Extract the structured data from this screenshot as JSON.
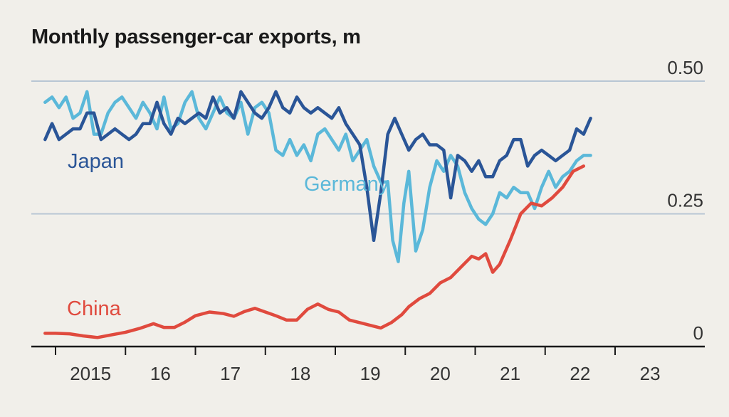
{
  "chart_data": {
    "type": "line",
    "title": "Monthly passenger-car exports, m",
    "xlabel": "",
    "ylabel": "",
    "ylim": [
      0,
      0.5
    ],
    "yticks": [
      {
        "value": 0,
        "label": "0"
      },
      {
        "value": 0.25,
        "label": "0.25"
      },
      {
        "value": 0.5,
        "label": "0.50"
      }
    ],
    "xlim": [
      2014.6,
      2024.12
    ],
    "xticks": [
      {
        "value": 2015,
        "label": "2015"
      },
      {
        "value": 2016,
        "label": "16"
      },
      {
        "value": 2017,
        "label": "17"
      },
      {
        "value": 2018,
        "label": "18"
      },
      {
        "value": 2019,
        "label": "19"
      },
      {
        "value": 2020,
        "label": "20"
      },
      {
        "value": 2021,
        "label": "21"
      },
      {
        "value": 2022,
        "label": "22"
      },
      {
        "value": 2023,
        "label": "23"
      }
    ],
    "grid": "horizontal at 0.25 and 0.50",
    "series": [
      {
        "name": "Germany",
        "color": "#5bb8d9",
        "points": [
          [
            2014.85,
            0.46
          ],
          [
            2014.95,
            0.47
          ],
          [
            2015.05,
            0.45
          ],
          [
            2015.15,
            0.47
          ],
          [
            2015.25,
            0.43
          ],
          [
            2015.35,
            0.44
          ],
          [
            2015.45,
            0.48
          ],
          [
            2015.55,
            0.4
          ],
          [
            2015.65,
            0.4
          ],
          [
            2015.75,
            0.44
          ],
          [
            2015.85,
            0.46
          ],
          [
            2015.95,
            0.47
          ],
          [
            2016.05,
            0.45
          ],
          [
            2016.15,
            0.43
          ],
          [
            2016.25,
            0.46
          ],
          [
            2016.35,
            0.44
          ],
          [
            2016.45,
            0.41
          ],
          [
            2016.55,
            0.47
          ],
          [
            2016.65,
            0.41
          ],
          [
            2016.75,
            0.42
          ],
          [
            2016.85,
            0.46
          ],
          [
            2016.95,
            0.48
          ],
          [
            2017.05,
            0.43
          ],
          [
            2017.15,
            0.41
          ],
          [
            2017.25,
            0.44
          ],
          [
            2017.35,
            0.47
          ],
          [
            2017.45,
            0.44
          ],
          [
            2017.55,
            0.43
          ],
          [
            2017.65,
            0.46
          ],
          [
            2017.75,
            0.4
          ],
          [
            2017.85,
            0.45
          ],
          [
            2017.95,
            0.46
          ],
          [
            2018.05,
            0.44
          ],
          [
            2018.15,
            0.37
          ],
          [
            2018.25,
            0.36
          ],
          [
            2018.35,
            0.39
          ],
          [
            2018.45,
            0.36
          ],
          [
            2018.55,
            0.38
          ],
          [
            2018.65,
            0.35
          ],
          [
            2018.75,
            0.4
          ],
          [
            2018.85,
            0.41
          ],
          [
            2018.95,
            0.39
          ],
          [
            2019.05,
            0.37
          ],
          [
            2019.15,
            0.4
          ],
          [
            2019.25,
            0.35
          ],
          [
            2019.35,
            0.37
          ],
          [
            2019.45,
            0.39
          ],
          [
            2019.55,
            0.34
          ],
          [
            2019.65,
            0.31
          ],
          [
            2019.75,
            0.31
          ],
          [
            2019.82,
            0.2
          ],
          [
            2019.9,
            0.16
          ],
          [
            2019.98,
            0.27
          ],
          [
            2020.05,
            0.33
          ],
          [
            2020.15,
            0.18
          ],
          [
            2020.25,
            0.22
          ],
          [
            2020.35,
            0.3
          ],
          [
            2020.45,
            0.35
          ],
          [
            2020.55,
            0.33
          ],
          [
            2020.65,
            0.36
          ],
          [
            2020.75,
            0.34
          ],
          [
            2020.85,
            0.29
          ],
          [
            2020.95,
            0.26
          ],
          [
            2021.05,
            0.24
          ],
          [
            2021.15,
            0.23
          ],
          [
            2021.25,
            0.25
          ],
          [
            2021.35,
            0.29
          ],
          [
            2021.45,
            0.28
          ],
          [
            2021.55,
            0.3
          ],
          [
            2021.65,
            0.29
          ],
          [
            2021.75,
            0.29
          ],
          [
            2021.85,
            0.26
          ],
          [
            2021.95,
            0.3
          ],
          [
            2022.05,
            0.33
          ],
          [
            2022.15,
            0.3
          ],
          [
            2022.25,
            0.32
          ],
          [
            2022.35,
            0.33
          ],
          [
            2022.45,
            0.35
          ],
          [
            2022.55,
            0.36
          ],
          [
            2022.65,
            0.36
          ]
        ]
      },
      {
        "name": "Japan",
        "color": "#2a5597",
        "points": [
          [
            2014.85,
            0.39
          ],
          [
            2014.95,
            0.42
          ],
          [
            2015.05,
            0.39
          ],
          [
            2015.15,
            0.4
          ],
          [
            2015.25,
            0.41
          ],
          [
            2015.35,
            0.41
          ],
          [
            2015.45,
            0.44
          ],
          [
            2015.55,
            0.44
          ],
          [
            2015.65,
            0.39
          ],
          [
            2015.75,
            0.4
          ],
          [
            2015.85,
            0.41
          ],
          [
            2015.95,
            0.4
          ],
          [
            2016.05,
            0.39
          ],
          [
            2016.15,
            0.4
          ],
          [
            2016.25,
            0.42
          ],
          [
            2016.35,
            0.42
          ],
          [
            2016.45,
            0.46
          ],
          [
            2016.55,
            0.42
          ],
          [
            2016.65,
            0.4
          ],
          [
            2016.75,
            0.43
          ],
          [
            2016.85,
            0.42
          ],
          [
            2016.95,
            0.43
          ],
          [
            2017.05,
            0.44
          ],
          [
            2017.15,
            0.43
          ],
          [
            2017.25,
            0.47
          ],
          [
            2017.35,
            0.44
          ],
          [
            2017.45,
            0.45
          ],
          [
            2017.55,
            0.43
          ],
          [
            2017.65,
            0.48
          ],
          [
            2017.75,
            0.46
          ],
          [
            2017.85,
            0.44
          ],
          [
            2017.95,
            0.43
          ],
          [
            2018.05,
            0.45
          ],
          [
            2018.15,
            0.48
          ],
          [
            2018.25,
            0.45
          ],
          [
            2018.35,
            0.44
          ],
          [
            2018.45,
            0.47
          ],
          [
            2018.55,
            0.45
          ],
          [
            2018.65,
            0.44
          ],
          [
            2018.75,
            0.45
          ],
          [
            2018.85,
            0.44
          ],
          [
            2018.95,
            0.43
          ],
          [
            2019.05,
            0.45
          ],
          [
            2019.15,
            0.42
          ],
          [
            2019.25,
            0.4
          ],
          [
            2019.35,
            0.38
          ],
          [
            2019.45,
            0.3
          ],
          [
            2019.55,
            0.2
          ],
          [
            2019.65,
            0.29
          ],
          [
            2019.75,
            0.4
          ],
          [
            2019.85,
            0.43
          ],
          [
            2019.95,
            0.4
          ],
          [
            2020.05,
            0.37
          ],
          [
            2020.15,
            0.39
          ],
          [
            2020.25,
            0.4
          ],
          [
            2020.35,
            0.38
          ],
          [
            2020.45,
            0.38
          ],
          [
            2020.55,
            0.37
          ],
          [
            2020.65,
            0.28
          ],
          [
            2020.75,
            0.36
          ],
          [
            2020.85,
            0.35
          ],
          [
            2020.95,
            0.33
          ],
          [
            2021.05,
            0.35
          ],
          [
            2021.15,
            0.32
          ],
          [
            2021.25,
            0.32
          ],
          [
            2021.35,
            0.35
          ],
          [
            2021.45,
            0.36
          ],
          [
            2021.55,
            0.39
          ],
          [
            2021.65,
            0.39
          ],
          [
            2021.75,
            0.34
          ],
          [
            2021.85,
            0.36
          ],
          [
            2021.95,
            0.37
          ],
          [
            2022.05,
            0.36
          ],
          [
            2022.15,
            0.35
          ],
          [
            2022.25,
            0.36
          ],
          [
            2022.35,
            0.37
          ],
          [
            2022.45,
            0.41
          ],
          [
            2022.55,
            0.4
          ],
          [
            2022.65,
            0.43
          ]
        ]
      },
      {
        "name": "China",
        "color": "#e04a3e",
        "points": [
          [
            2014.85,
            0.025
          ],
          [
            2015.0,
            0.025
          ],
          [
            2015.2,
            0.024
          ],
          [
            2015.4,
            0.02
          ],
          [
            2015.6,
            0.017
          ],
          [
            2015.8,
            0.022
          ],
          [
            2016.0,
            0.027
          ],
          [
            2016.2,
            0.034
          ],
          [
            2016.4,
            0.043
          ],
          [
            2016.55,
            0.036
          ],
          [
            2016.7,
            0.036
          ],
          [
            2016.85,
            0.046
          ],
          [
            2017.0,
            0.058
          ],
          [
            2017.2,
            0.065
          ],
          [
            2017.4,
            0.062
          ],
          [
            2017.55,
            0.057
          ],
          [
            2017.7,
            0.066
          ],
          [
            2017.85,
            0.072
          ],
          [
            2018.0,
            0.065
          ],
          [
            2018.15,
            0.058
          ],
          [
            2018.3,
            0.05
          ],
          [
            2018.45,
            0.05
          ],
          [
            2018.6,
            0.07
          ],
          [
            2018.75,
            0.08
          ],
          [
            2018.9,
            0.07
          ],
          [
            2019.05,
            0.065
          ],
          [
            2019.2,
            0.05
          ],
          [
            2019.35,
            0.045
          ],
          [
            2019.5,
            0.04
          ],
          [
            2019.65,
            0.035
          ],
          [
            2019.8,
            0.045
          ],
          [
            2019.95,
            0.06
          ],
          [
            2020.05,
            0.075
          ],
          [
            2020.2,
            0.09
          ],
          [
            2020.35,
            0.1
          ],
          [
            2020.5,
            0.12
          ],
          [
            2020.65,
            0.13
          ],
          [
            2020.8,
            0.15
          ],
          [
            2020.95,
            0.17
          ],
          [
            2021.05,
            0.165
          ],
          [
            2021.15,
            0.175
          ],
          [
            2021.25,
            0.14
          ],
          [
            2021.35,
            0.155
          ],
          [
            2021.5,
            0.2
          ],
          [
            2021.65,
            0.25
          ],
          [
            2021.8,
            0.27
          ],
          [
            2021.95,
            0.265
          ],
          [
            2022.1,
            0.28
          ],
          [
            2022.25,
            0.3
          ],
          [
            2022.4,
            0.33
          ],
          [
            2022.55,
            0.34
          ]
        ]
      }
    ]
  }
}
